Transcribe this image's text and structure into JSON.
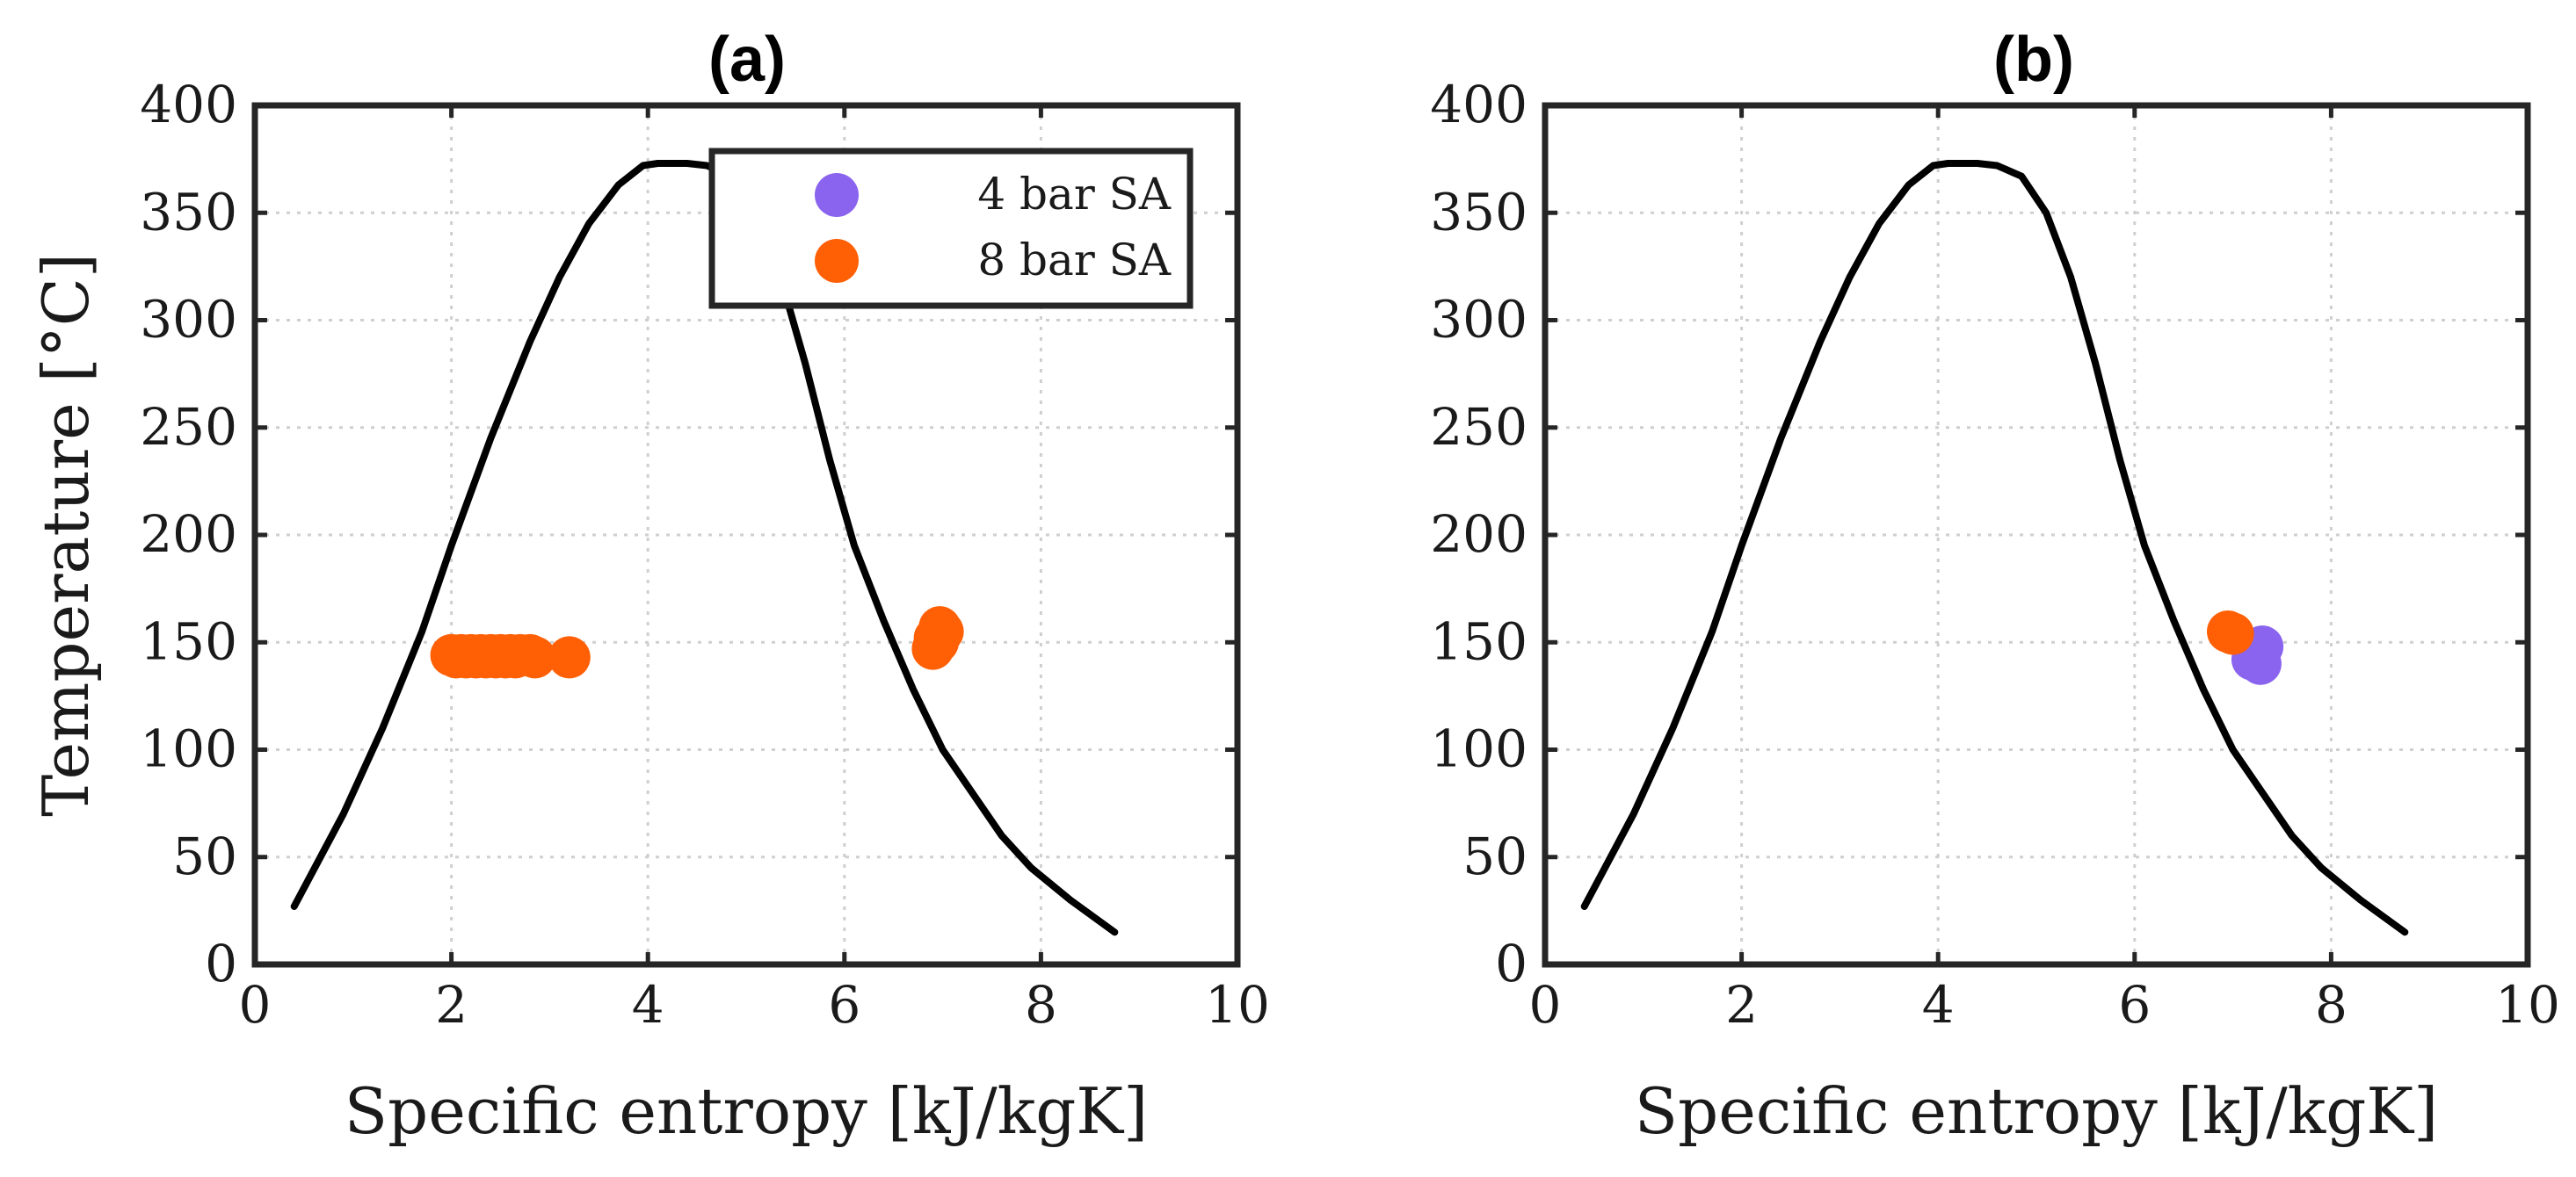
{
  "chart_data": [
    {
      "type": "scatter",
      "title": "(a)",
      "xlabel": "Specific entropy [kJ/kgK]",
      "ylabel": "Temperature [°C]",
      "xlim": [
        0,
        10
      ],
      "ylim": [
        0,
        400
      ],
      "xticks": [
        0,
        2,
        4,
        6,
        8,
        10
      ],
      "yticks": [
        0,
        50,
        100,
        150,
        200,
        250,
        300,
        350,
        400
      ],
      "grid": true,
      "legend_position": "top-right",
      "saturation_curve": {
        "x": [
          0.4,
          0.9,
          1.3,
          1.7,
          2.0,
          2.4,
          2.8,
          3.1,
          3.4,
          3.7,
          3.95,
          4.1,
          4.25,
          4.4,
          4.6,
          4.85,
          5.1,
          5.35,
          5.6,
          5.85,
          6.1,
          6.4,
          6.7,
          7.0,
          7.3,
          7.6,
          7.9,
          8.3,
          8.75
        ],
        "y": [
          27,
          70,
          110,
          155,
          195,
          245,
          290,
          320,
          345,
          363,
          372,
          373,
          373,
          373,
          372,
          367,
          350,
          320,
          280,
          235,
          195,
          160,
          128,
          100,
          80,
          60,
          45,
          30,
          15
        ]
      },
      "series": [
        {
          "name": "4 bar SA",
          "color": "#8a63ee",
          "x": [],
          "y": []
        },
        {
          "name": "8 bar SA",
          "color": "#ff5f05",
          "x": [
            2.0,
            2.05,
            2.1,
            2.15,
            2.2,
            2.25,
            2.3,
            2.35,
            2.4,
            2.45,
            2.5,
            2.55,
            2.6,
            2.65,
            2.7,
            2.8,
            2.85,
            3.2,
            6.9,
            6.95,
            7.0,
            6.92,
            6.97
          ],
          "y": [
            144,
            143,
            144,
            143,
            144,
            143,
            144,
            143,
            144,
            143,
            144,
            143,
            144,
            143,
            144,
            144,
            143,
            143,
            147,
            150,
            155,
            152,
            157
          ]
        }
      ]
    },
    {
      "type": "scatter",
      "title": "(b)",
      "xlabel": "Specific entropy [kJ/kgK]",
      "ylabel": "",
      "xlim": [
        0,
        10
      ],
      "ylim": [
        0,
        400
      ],
      "xticks": [
        0,
        2,
        4,
        6,
        8,
        10
      ],
      "yticks": [
        0,
        50,
        100,
        150,
        200,
        250,
        300,
        350,
        400
      ],
      "grid": true,
      "saturation_curve": {
        "x": [
          0.4,
          0.9,
          1.3,
          1.7,
          2.0,
          2.4,
          2.8,
          3.1,
          3.4,
          3.7,
          3.95,
          4.1,
          4.25,
          4.4,
          4.6,
          4.85,
          5.1,
          5.35,
          5.6,
          5.85,
          6.1,
          6.4,
          6.7,
          7.0,
          7.3,
          7.6,
          7.9,
          8.3,
          8.75
        ],
        "y": [
          27,
          70,
          110,
          155,
          195,
          245,
          290,
          320,
          345,
          363,
          372,
          373,
          373,
          373,
          372,
          367,
          350,
          320,
          280,
          235,
          195,
          160,
          128,
          100,
          80,
          60,
          45,
          30,
          15
        ]
      },
      "series": [
        {
          "name": "4 bar SA",
          "color": "#8a63ee",
          "x": [
            7.2,
            7.25,
            7.3,
            7.28,
            7.22
          ],
          "y": [
            142,
            145,
            148,
            140,
            147
          ]
        },
        {
          "name": "8 bar SA",
          "color": "#ff5f05",
          "x": [
            6.95,
            7.0
          ],
          "y": [
            155,
            154
          ]
        }
      ]
    }
  ]
}
